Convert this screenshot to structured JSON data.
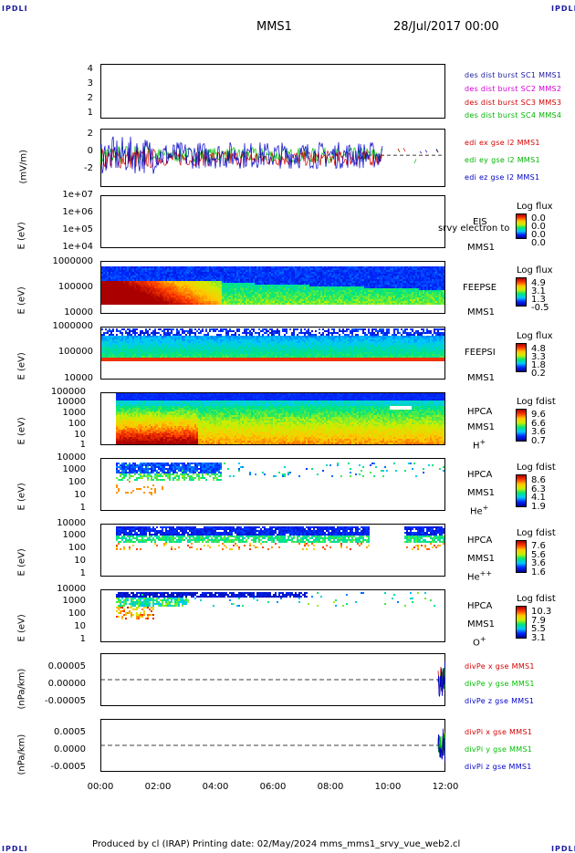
{
  "header": {
    "corner_tl": "IPDLI",
    "corner_tr": "IPDLI",
    "corner_bl": "IPDLI",
    "corner_br": "IPDLI",
    "spacecraft": "MMS1",
    "date_time": "28/Jul/2017 00:00"
  },
  "footer": {
    "text": "Produced by cl (IRAP)   Printing date: 02/May/2024   mms_mms1_srvy_vue_web2.cl"
  },
  "colors": {
    "sc1": "#1a1aa0",
    "sc2": "#d400d4",
    "sc3": "#d40000",
    "sc4": "#00b400",
    "x": "#d40000",
    "y": "#00c000",
    "z": "#0000c8"
  },
  "chart_data": [
    {
      "type": "line",
      "panel": "des-dist-burst",
      "yticks": [
        "4",
        "3",
        "2",
        "1"
      ],
      "ylim": [
        1,
        4
      ],
      "legend": [
        "des dist burst SC1 MMS1",
        "des dist burst SC2 MMS2",
        "des dist burst SC3 MMS3",
        "des dist burst SC4 MMS4"
      ],
      "series": []
    },
    {
      "type": "line",
      "panel": "edi-e-field",
      "ylabel": "(mV/m)",
      "yticks": [
        "2",
        "0",
        "-2"
      ],
      "ylim": [
        -3,
        2.5
      ],
      "legend": [
        "edi ex gse l2 MMS1",
        "edi ey gse l2 MMS1",
        "edi ez gse l2 MMS1"
      ]
    },
    {
      "type": "heatmap",
      "panel": "eis",
      "ylabel": "E (eV)",
      "yticks": [
        "1e+07",
        "1e+06",
        "1e+05",
        "1e+04"
      ],
      "side": [
        "EIS",
        "MMS1"
      ],
      "side_extra": "srvy electron to",
      "cbar_title": "Log flux",
      "cbar_values": [
        "0.0",
        "0.0",
        "0.0",
        "0.0"
      ]
    },
    {
      "type": "heatmap",
      "panel": "feeps-electron",
      "ylabel": "E (eV)",
      "yticks": [
        "1000000",
        "100000",
        "10000"
      ],
      "side": [
        "FEEPSE",
        "MMS1"
      ],
      "cbar_title": "Log flux",
      "cbar_values": [
        "4.9",
        "3.1",
        "1.3",
        "-0.5"
      ]
    },
    {
      "type": "heatmap",
      "panel": "feeps-ion",
      "ylabel": "E (eV)",
      "yticks": [
        "1000000",
        "100000",
        "10000"
      ],
      "side": [
        "FEEPSI",
        "MMS1"
      ],
      "cbar_title": "Log flux",
      "cbar_values": [
        "4.8",
        "3.3",
        "1.8",
        "0.2"
      ]
    },
    {
      "type": "heatmap",
      "panel": "hpca-h",
      "ylabel": "E (eV)",
      "yticks": [
        "100000",
        "10000",
        "1000",
        "100",
        "10",
        "1"
      ],
      "side": [
        "HPCA",
        "MMS1"
      ],
      "species": "H",
      "charge": "+",
      "cbar_title": "Log fdist",
      "cbar_values": [
        "9.6",
        "6.6",
        "3.6",
        "0.7"
      ]
    },
    {
      "type": "heatmap",
      "panel": "hpca-he1",
      "ylabel": "E (eV)",
      "yticks": [
        "10000",
        "1000",
        "100",
        "10",
        "1"
      ],
      "side": [
        "HPCA",
        "MMS1"
      ],
      "species": "He",
      "charge": "+",
      "cbar_title": "Log fdist",
      "cbar_values": [
        "8.6",
        "6.3",
        "4.1",
        "1.9"
      ]
    },
    {
      "type": "heatmap",
      "panel": "hpca-he2",
      "ylabel": "E (eV)",
      "yticks": [
        "10000",
        "1000",
        "100",
        "10",
        "1"
      ],
      "side": [
        "HPCA",
        "MMS1"
      ],
      "species": "He",
      "charge": "++",
      "cbar_title": "Log fdist",
      "cbar_values": [
        "7.6",
        "5.6",
        "3.6",
        "1.6"
      ]
    },
    {
      "type": "heatmap",
      "panel": "hpca-o",
      "ylabel": "E (eV)",
      "yticks": [
        "10000",
        "1000",
        "100",
        "10",
        "1"
      ],
      "side": [
        "HPCA",
        "MMS1"
      ],
      "species": "O",
      "charge": "+",
      "cbar_title": "Log fdist",
      "cbar_values": [
        "10.3",
        "7.9",
        "5.5",
        "3.1"
      ]
    },
    {
      "type": "line",
      "panel": "divpe",
      "ylabel": "(nPa/km)",
      "yticks": [
        "0.00005",
        "0.00000",
        "-0.00005"
      ],
      "ylim": [
        -7e-05,
        7e-05
      ],
      "legend": [
        "divPe x gse MMS1",
        "divPe y gse MMS1",
        "divPe z gse MMS1"
      ]
    },
    {
      "type": "line",
      "panel": "divpi",
      "ylabel": "(nPa/km)",
      "yticks": [
        "0.0005",
        "0.0000",
        "-0.0005"
      ],
      "ylim": [
        -0.0007,
        0.0007
      ],
      "legend": [
        "divPi x gse MMS1",
        "divPi y gse MMS1",
        "divPi z gse MMS1"
      ]
    }
  ],
  "xaxis": {
    "ticks": [
      "00:00",
      "02:00",
      "04:00",
      "06:00",
      "08:00",
      "10:00",
      "12:00"
    ],
    "xlim": [
      "00:00",
      "12:00"
    ]
  }
}
